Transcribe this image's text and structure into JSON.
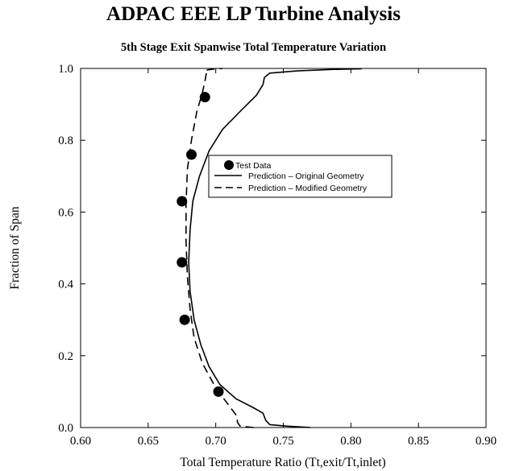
{
  "title": "ADPAC EEE LP Turbine Analysis",
  "subtitle": "5th Stage Exit Spanwise Total Temperature Variation",
  "chart_data": {
    "type": "line",
    "xlabel": "Total Temperature Ratio (Tt,exit/Tt,inlet)",
    "ylabel": "Fraction of Span",
    "xlim": [
      0.6,
      0.9
    ],
    "ylim": [
      0.0,
      1.0
    ],
    "xticks": [
      "0.60",
      "0.65",
      "0.70",
      "0.75",
      "0.80",
      "0.85",
      "0.90"
    ],
    "yticks": [
      "0.0",
      "0.2",
      "0.4",
      "0.6",
      "0.8",
      "1.0"
    ],
    "grid": false,
    "legend_position": "center-right",
    "series": [
      {
        "name": "Test Data",
        "style": "markers",
        "points": [
          {
            "x": 0.692,
            "y": 0.92
          },
          {
            "x": 0.682,
            "y": 0.76
          },
          {
            "x": 0.675,
            "y": 0.63
          },
          {
            "x": 0.675,
            "y": 0.46
          },
          {
            "x": 0.677,
            "y": 0.3
          },
          {
            "x": 0.702,
            "y": 0.1
          }
        ]
      },
      {
        "name": "Prediction – Original Geometry",
        "style": "solid",
        "points": [
          {
            "x": 0.77,
            "y": 0.0
          },
          {
            "x": 0.752,
            "y": 0.004
          },
          {
            "x": 0.74,
            "y": 0.008
          },
          {
            "x": 0.737,
            "y": 0.02
          },
          {
            "x": 0.735,
            "y": 0.04
          },
          {
            "x": 0.728,
            "y": 0.055
          },
          {
            "x": 0.715,
            "y": 0.08
          },
          {
            "x": 0.703,
            "y": 0.12
          },
          {
            "x": 0.695,
            "y": 0.17
          },
          {
            "x": 0.689,
            "y": 0.23
          },
          {
            "x": 0.684,
            "y": 0.3
          },
          {
            "x": 0.681,
            "y": 0.38
          },
          {
            "x": 0.68,
            "y": 0.46
          },
          {
            "x": 0.681,
            "y": 0.55
          },
          {
            "x": 0.683,
            "y": 0.63
          },
          {
            "x": 0.688,
            "y": 0.7
          },
          {
            "x": 0.695,
            "y": 0.77
          },
          {
            "x": 0.705,
            "y": 0.83
          },
          {
            "x": 0.718,
            "y": 0.88
          },
          {
            "x": 0.73,
            "y": 0.925
          },
          {
            "x": 0.735,
            "y": 0.955
          },
          {
            "x": 0.736,
            "y": 0.975
          },
          {
            "x": 0.74,
            "y": 0.987
          },
          {
            "x": 0.76,
            "y": 0.993
          },
          {
            "x": 0.785,
            "y": 0.997
          },
          {
            "x": 0.808,
            "y": 0.999
          }
        ]
      },
      {
        "name": "Prediction – Modified Geometry",
        "style": "dashed",
        "points": [
          {
            "x": 0.728,
            "y": 0.0
          },
          {
            "x": 0.718,
            "y": 0.004
          },
          {
            "x": 0.716,
            "y": 0.015
          },
          {
            "x": 0.716,
            "y": 0.03
          },
          {
            "x": 0.71,
            "y": 0.06
          },
          {
            "x": 0.7,
            "y": 0.11
          },
          {
            "x": 0.69,
            "y": 0.18
          },
          {
            "x": 0.684,
            "y": 0.25
          },
          {
            "x": 0.681,
            "y": 0.33
          },
          {
            "x": 0.679,
            "y": 0.42
          },
          {
            "x": 0.678,
            "y": 0.52
          },
          {
            "x": 0.678,
            "y": 0.62
          },
          {
            "x": 0.679,
            "y": 0.72
          },
          {
            "x": 0.682,
            "y": 0.8
          },
          {
            "x": 0.686,
            "y": 0.88
          },
          {
            "x": 0.69,
            "y": 0.93
          },
          {
            "x": 0.692,
            "y": 0.965
          },
          {
            "x": 0.693,
            "y": 0.985
          },
          {
            "x": 0.692,
            "y": 0.995
          },
          {
            "x": 0.698,
            "y": 0.998
          },
          {
            "x": 0.705,
            "y": 1.0
          }
        ]
      }
    ]
  }
}
